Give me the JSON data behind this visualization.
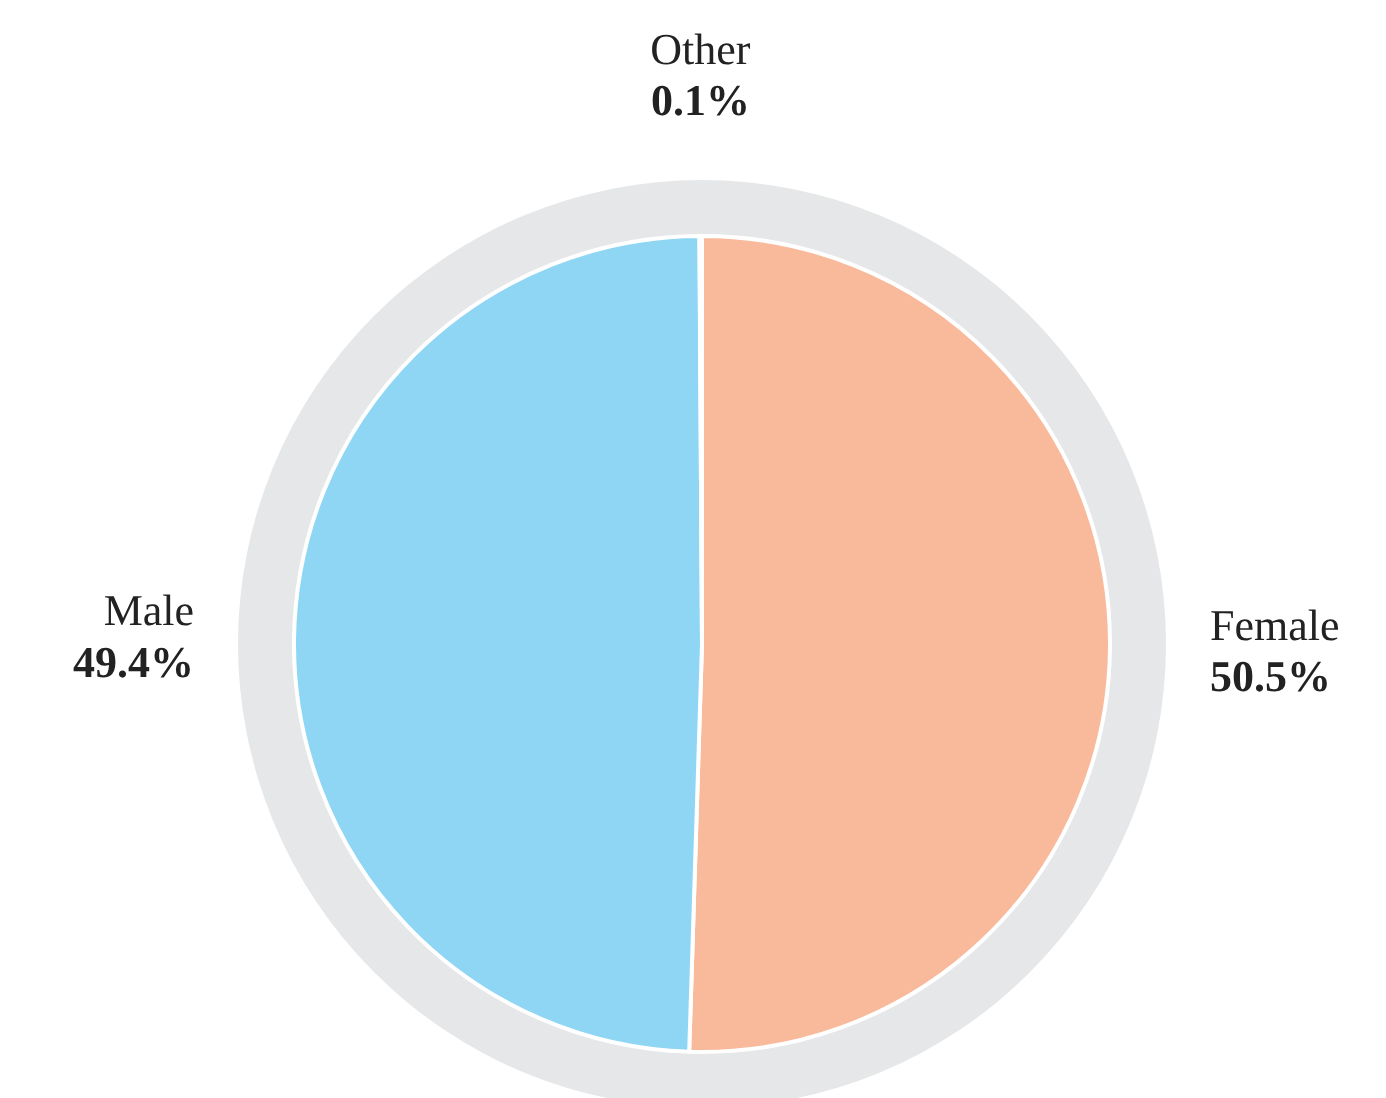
{
  "chart_data": {
    "type": "pie",
    "categories": [
      "Female",
      "Male",
      "Other"
    ],
    "values": [
      50.5,
      49.4,
      0.1
    ],
    "value_labels": [
      "50.5%",
      "49.4%",
      "0.1%"
    ],
    "colors": [
      "#f9b99b",
      "#8fd6f5",
      "#c8c8c8"
    ],
    "legend": false
  }
}
